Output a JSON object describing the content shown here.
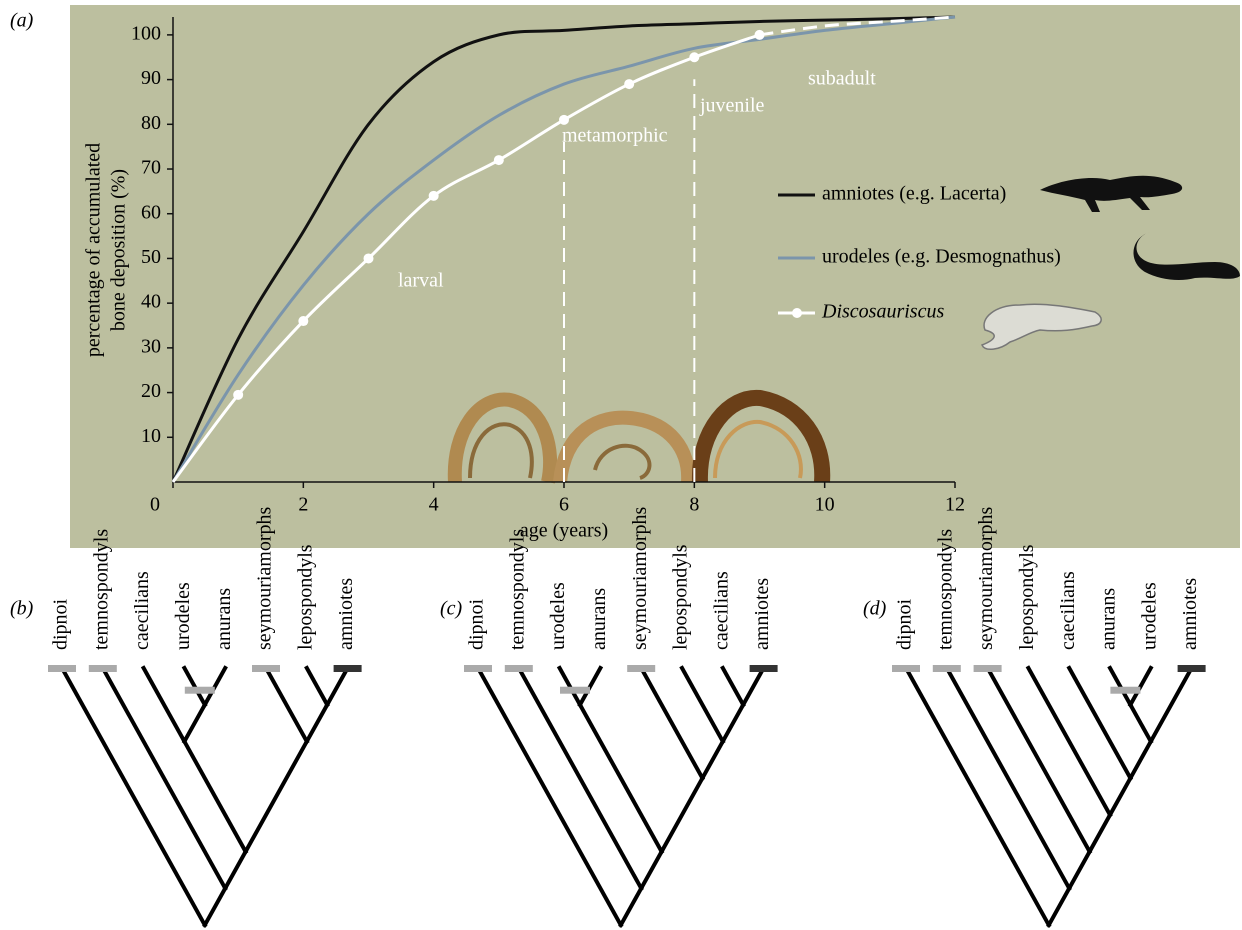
{
  "panel_a_label": "(a)",
  "chart_data": {
    "type": "line",
    "x_label": "age (years)",
    "y_label": [
      "percentage of accumulated",
      "bone deposition (%)"
    ],
    "x": [
      0,
      1,
      2,
      3,
      4,
      5,
      6,
      7,
      8,
      9,
      10,
      11,
      12
    ],
    "series": [
      {
        "name": "amniotes (e.g. Lacerta)",
        "color": "#111111",
        "values": [
          0,
          32,
          56,
          80,
          94,
          100,
          101,
          102,
          102.5,
          103,
          103.3,
          103.6,
          104
        ]
      },
      {
        "name": "urodeles (e.g. Desmognathus)",
        "color": "#7b95ab",
        "values": [
          0,
          24,
          44,
          60,
          72,
          82,
          89,
          93,
          97,
          99,
          101,
          102.5,
          104
        ]
      },
      {
        "name": "Discosauriscus",
        "color": "#ffffff",
        "values": [
          0,
          19.5,
          36,
          50,
          64,
          72,
          81,
          89,
          95,
          100,
          102,
          103,
          104
        ],
        "markers": true,
        "dashed_from_x": 9
      }
    ],
    "vlines": [
      6,
      8
    ],
    "annotations": [
      "larval",
      "metamorphic",
      "juvenile",
      "subadult"
    ],
    "xlim": [
      0,
      12
    ],
    "xticks": [
      0,
      2,
      4,
      6,
      8,
      10,
      12
    ],
    "ylim": [
      0,
      104
    ],
    "yticks": [
      10,
      20,
      30,
      40,
      50,
      60,
      70,
      80,
      90,
      100
    ],
    "background": "#bcbf9f"
  },
  "cladograms": [
    {
      "label": "(b)",
      "taxa": [
        "dipnoi",
        "temnospondyls",
        "caecilians",
        "urodeles",
        "anurans",
        "seymouriamorphs",
        "lepospondyls",
        "amniotes"
      ]
    },
    {
      "label": "(c)",
      "taxa": [
        "dipnoi",
        "temnospondyls",
        "urodeles",
        "anurans",
        "seymouriamorphs",
        "lepospondyls",
        "caecilians",
        "amniotes"
      ]
    },
    {
      "label": "(d)",
      "taxa": [
        "dipnoi",
        "temnospondyls",
        "seymouriamorphs",
        "lepospondyls",
        "caecilians",
        "anurans",
        "urodeles",
        "amniotes"
      ]
    }
  ]
}
